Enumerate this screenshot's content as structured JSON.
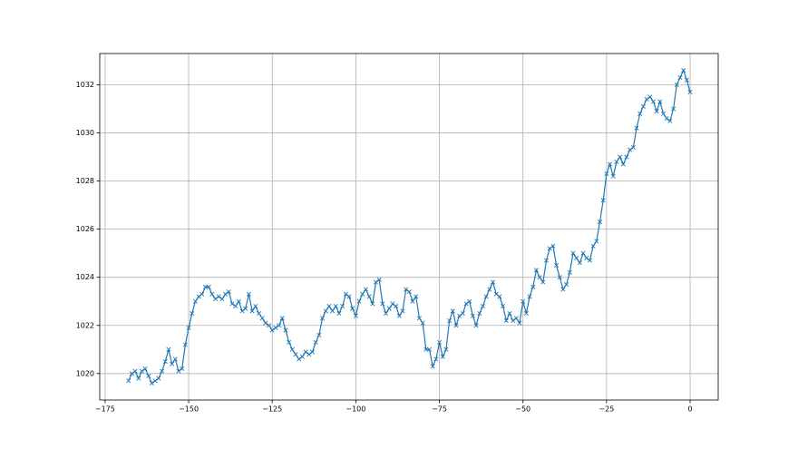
{
  "chart_data": {
    "type": "line",
    "marker": "x",
    "grid": true,
    "xlim": [
      -176.6,
      8.4
    ],
    "ylim": [
      1018.9,
      1033.3
    ],
    "xticks": [
      {
        "value": -175,
        "label": "−175"
      },
      {
        "value": -150,
        "label": "−150"
      },
      {
        "value": -125,
        "label": "−125"
      },
      {
        "value": -100,
        "label": "−100"
      },
      {
        "value": -75,
        "label": "−75"
      },
      {
        "value": -50,
        "label": "−50"
      },
      {
        "value": -25,
        "label": "−25"
      },
      0
    ],
    "yticks": [
      1020,
      1022,
      1024,
      1026,
      1028,
      1030,
      1032
    ],
    "x": [
      -168,
      -167,
      -166,
      -165,
      -164,
      -163,
      -162,
      -161,
      -160,
      -159,
      -158,
      -157,
      -156,
      -155,
      -154,
      -153,
      -152,
      -151,
      -150,
      -149,
      -148,
      -147,
      -146,
      -145,
      -144,
      -143,
      -142,
      -141,
      -140,
      -139,
      -138,
      -137,
      -136,
      -135,
      -134,
      -133,
      -132,
      -131,
      -130,
      -129,
      -128,
      -127,
      -126,
      -125,
      -124,
      -123,
      -122,
      -121,
      -120,
      -119,
      -118,
      -117,
      -116,
      -115,
      -114,
      -113,
      -112,
      -111,
      -110,
      -109,
      -108,
      -107,
      -106,
      -105,
      -104,
      -103,
      -102,
      -101,
      -100,
      -99,
      -98,
      -97,
      -96,
      -95,
      -94,
      -93,
      -92,
      -91,
      -90,
      -89,
      -88,
      -87,
      -86,
      -85,
      -84,
      -83,
      -82,
      -81,
      -80,
      -79,
      -78,
      -77,
      -76,
      -75,
      -74,
      -73,
      -72,
      -71,
      -70,
      -69,
      -68,
      -67,
      -66,
      -65,
      -64,
      -63,
      -62,
      -61,
      -60,
      -59,
      -58,
      -57,
      -56,
      -55,
      -54,
      -53,
      -52,
      -51,
      -50,
      -49,
      -48,
      -47,
      -46,
      -45,
      -44,
      -43,
      -42,
      -41,
      -40,
      -39,
      -38,
      -37,
      -36,
      -35,
      -34,
      -33,
      -32,
      -31,
      -30,
      -29,
      -28,
      -27,
      -26,
      -25,
      -24,
      -23,
      -22,
      -21,
      -20,
      -19,
      -18,
      -17,
      -16,
      -15,
      -14,
      -13,
      -12,
      -11,
      -10,
      -9,
      -8,
      -7,
      -6,
      -5,
      -4,
      -3,
      -2,
      -1,
      0
    ],
    "series": [
      {
        "color": "#1f77b4",
        "values": [
          1019.7,
          1020.0,
          1020.1,
          1019.8,
          1020.1,
          1020.2,
          1019.9,
          1019.6,
          1019.7,
          1019.8,
          1020.1,
          1020.5,
          1021.0,
          1020.4,
          1020.6,
          1020.1,
          1020.2,
          1021.2,
          1021.9,
          1022.5,
          1023.0,
          1023.2,
          1023.3,
          1023.6,
          1023.6,
          1023.3,
          1023.1,
          1023.2,
          1023.1,
          1023.3,
          1023.4,
          1022.9,
          1022.8,
          1023.0,
          1022.6,
          1022.7,
          1023.3,
          1022.6,
          1022.8,
          1022.5,
          1022.3,
          1022.1,
          1022.0,
          1021.8,
          1021.9,
          1022.0,
          1022.3,
          1021.8,
          1021.3,
          1021.0,
          1020.8,
          1020.6,
          1020.7,
          1020.9,
          1020.8,
          1020.9,
          1021.3,
          1021.6,
          1022.3,
          1022.6,
          1022.8,
          1022.6,
          1022.8,
          1022.5,
          1022.8,
          1023.3,
          1023.2,
          1022.7,
          1022.4,
          1023.0,
          1023.3,
          1023.5,
          1023.2,
          1022.9,
          1023.8,
          1023.9,
          1022.9,
          1022.5,
          1022.7,
          1022.9,
          1022.8,
          1022.4,
          1022.6,
          1023.5,
          1023.4,
          1023.0,
          1023.2,
          1022.3,
          1022.1,
          1021.0,
          1021.0,
          1020.3,
          1020.6,
          1021.3,
          1020.7,
          1021.0,
          1022.2,
          1022.6,
          1022.0,
          1022.4,
          1022.5,
          1022.9,
          1023.0,
          1022.4,
          1022.0,
          1022.5,
          1022.8,
          1023.2,
          1023.5,
          1023.8,
          1023.3,
          1023.2,
          1022.8,
          1022.2,
          1022.5,
          1022.2,
          1022.3,
          1022.1,
          1023.0,
          1022.5,
          1023.2,
          1023.6,
          1024.3,
          1024.0,
          1023.8,
          1024.7,
          1025.2,
          1025.3,
          1024.5,
          1024.0,
          1023.5,
          1023.7,
          1024.2,
          1025.0,
          1024.8,
          1024.6,
          1025.0,
          1024.8,
          1024.7,
          1025.3,
          1025.5,
          1026.3,
          1027.2,
          1028.3,
          1028.7,
          1028.2,
          1028.8,
          1029.0,
          1028.7,
          1029.0,
          1029.3,
          1029.4,
          1030.2,
          1030.8,
          1031.1,
          1031.4,
          1031.5,
          1031.3,
          1030.9,
          1031.3,
          1030.8,
          1030.6,
          1030.5,
          1031.0,
          1032.0,
          1032.3,
          1032.6,
          1032.2,
          1031.7
        ]
      }
    ]
  }
}
